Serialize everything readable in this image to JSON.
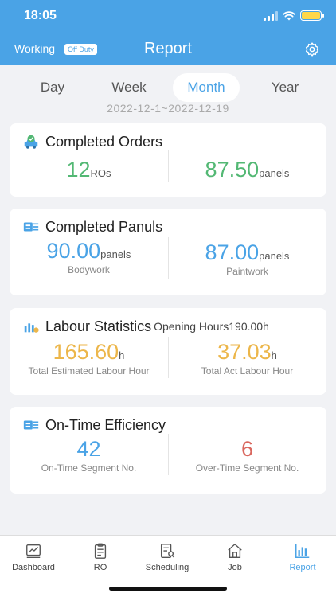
{
  "status": {
    "time": "18:05"
  },
  "header": {
    "working_label": "Working",
    "duty_badge": "Off Duty",
    "title": "Report",
    "settings_icon": "gear-icon"
  },
  "period_tabs": [
    {
      "label": "Day",
      "active": false
    },
    {
      "label": "Week",
      "active": false
    },
    {
      "label": "Month",
      "active": true
    },
    {
      "label": "Year",
      "active": false
    }
  ],
  "date_range": "2022-12-1~2022-12-19",
  "cards": {
    "orders": {
      "title": "Completed Orders",
      "icon": "car-check-icon",
      "left": {
        "value": "12",
        "unit": "ROs"
      },
      "right": {
        "value": "87.50",
        "unit": "panels"
      }
    },
    "panels": {
      "title": "Completed Panuls",
      "icon": "panels-icon",
      "left": {
        "value": "90.00",
        "unit": "panels",
        "caption": "Bodywork"
      },
      "right": {
        "value": "87.00",
        "unit": "panels",
        "caption": "Paintwork"
      }
    },
    "labour": {
      "title": "Labour Statistics",
      "extra": "Opening Hours190.00h",
      "icon": "bar-chart-coin-icon",
      "left": {
        "value": "165.60",
        "unit": "h",
        "caption": "Total Estimated Labour Hour"
      },
      "right": {
        "value": "37.03",
        "unit": "h",
        "caption": "Total Act Labour Hour"
      }
    },
    "efficiency": {
      "title": "On-Time Efficiency",
      "icon": "panels-icon",
      "left": {
        "value": "42",
        "caption": "On-Time Segment No."
      },
      "right": {
        "value": "6",
        "caption": "Over-Time Segment No."
      }
    }
  },
  "tabbar": [
    {
      "label": "Dashboard",
      "icon": "dashboard-icon",
      "active": false
    },
    {
      "label": "RO",
      "icon": "clipboard-icon",
      "active": false
    },
    {
      "label": "Scheduling",
      "icon": "schedule-icon",
      "active": false
    },
    {
      "label": "Job",
      "icon": "home-icon",
      "active": false
    },
    {
      "label": "Report",
      "icon": "report-chart-icon",
      "active": true
    }
  ],
  "colors": {
    "primary": "#4aa3e6",
    "green": "#53b874",
    "gold": "#ecb64a",
    "red": "#d9675e",
    "background": "#f1f2f5"
  }
}
